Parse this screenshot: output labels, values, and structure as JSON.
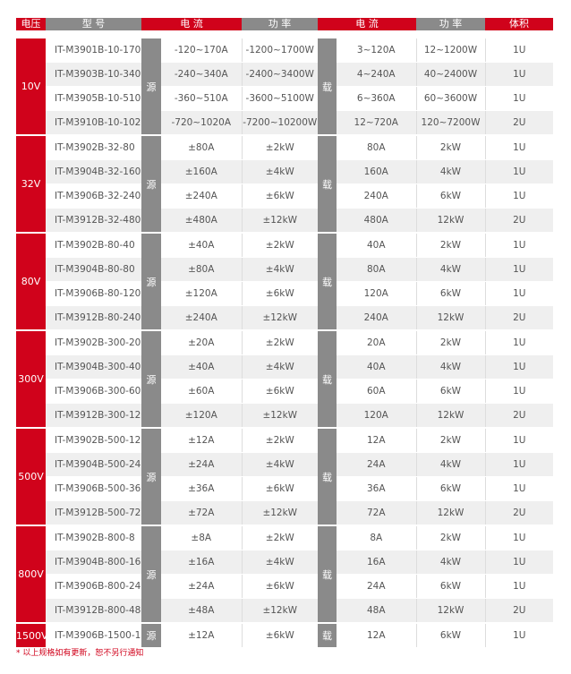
{
  "colors": {
    "accent": "#d0021b",
    "tag": "#8a8a8a",
    "row_alt": "#efefef"
  },
  "header": {
    "voltage": "电压",
    "model": "型 号",
    "src_current": "电 流",
    "src_power": "功 率",
    "load_current": "电 流",
    "load_power": "功 率",
    "size": "体积"
  },
  "source_label": "源",
  "load_label": "载",
  "groups": [
    {
      "voltage": "10V",
      "rows": [
        [
          "IT-M3901B-10-170",
          "-120~170A",
          "-1200~1700W",
          "3~120A",
          "12~1200W",
          "1U"
        ],
        [
          "IT-M3903B-10-340",
          "-240~340A",
          "-2400~3400W",
          "4~240A",
          "40~2400W",
          "1U"
        ],
        [
          "IT-M3905B-10-510",
          "-360~510A",
          "-3600~5100W",
          "6~360A",
          "60~3600W",
          "1U"
        ],
        [
          "IT-M3910B-10-1020",
          "-720~1020A",
          "-7200~10200W",
          "12~720A",
          "120~7200W",
          "2U"
        ]
      ]
    },
    {
      "voltage": "32V",
      "rows": [
        [
          "IT-M3902B-32-80",
          "±80A",
          "±2kW",
          "80A",
          "2kW",
          "1U"
        ],
        [
          "IT-M3904B-32-160",
          "±160A",
          "±4kW",
          "160A",
          "4kW",
          "1U"
        ],
        [
          "IT-M3906B-32-240",
          "±240A",
          "±6kW",
          "240A",
          "6kW",
          "1U"
        ],
        [
          "IT-M3912B-32-480",
          "±480A",
          "±12kW",
          "480A",
          "12kW",
          "2U"
        ]
      ]
    },
    {
      "voltage": "80V",
      "rows": [
        [
          "IT-M3902B-80-40",
          "±40A",
          "±2kW",
          "40A",
          "2kW",
          "1U"
        ],
        [
          "IT-M3904B-80-80",
          "±80A",
          "±4kW",
          "80A",
          "4kW",
          "1U"
        ],
        [
          "IT-M3906B-80-120",
          "±120A",
          "±6kW",
          "120A",
          "6kW",
          "1U"
        ],
        [
          "IT-M3912B-80-240",
          "±240A",
          "±12kW",
          "240A",
          "12kW",
          "2U"
        ]
      ]
    },
    {
      "voltage": "300V",
      "rows": [
        [
          "IT-M3902B-300-20",
          "±20A",
          "±2kW",
          "20A",
          "2kW",
          "1U"
        ],
        [
          "IT-M3904B-300-40",
          "±40A",
          "±4kW",
          "40A",
          "4kW",
          "1U"
        ],
        [
          "IT-M3906B-300-60",
          "±60A",
          "±6kW",
          "60A",
          "6kW",
          "1U"
        ],
        [
          "IT-M3912B-300-120",
          "±120A",
          "±12kW",
          "120A",
          "12kW",
          "2U"
        ]
      ]
    },
    {
      "voltage": "500V",
      "rows": [
        [
          "IT-M3902B-500-12",
          "±12A",
          "±2kW",
          "12A",
          "2kW",
          "1U"
        ],
        [
          "IT-M3904B-500-24",
          "±24A",
          "±4kW",
          "24A",
          "4kW",
          "1U"
        ],
        [
          "IT-M3906B-500-36",
          "±36A",
          "±6kW",
          "36A",
          "6kW",
          "1U"
        ],
        [
          "IT-M3912B-500-72",
          "±72A",
          "±12kW",
          "72A",
          "12kW",
          "2U"
        ]
      ]
    },
    {
      "voltage": "800V",
      "rows": [
        [
          "IT-M3902B-800-8",
          "±8A",
          "±2kW",
          "8A",
          "2kW",
          "1U"
        ],
        [
          "IT-M3904B-800-16",
          "±16A",
          "±4kW",
          "16A",
          "4kW",
          "1U"
        ],
        [
          "IT-M3906B-800-24",
          "±24A",
          "±6kW",
          "24A",
          "6kW",
          "1U"
        ],
        [
          "IT-M3912B-800-48",
          "±48A",
          "±12kW",
          "48A",
          "12kW",
          "2U"
        ]
      ]
    },
    {
      "voltage": "1500V",
      "rows": [
        [
          "IT-M3906B-1500-12",
          "±12A",
          "±6kW",
          "12A",
          "6kW",
          "1U"
        ]
      ]
    }
  ],
  "footnote": "* 以上规格如有更新，恕不另行通知"
}
